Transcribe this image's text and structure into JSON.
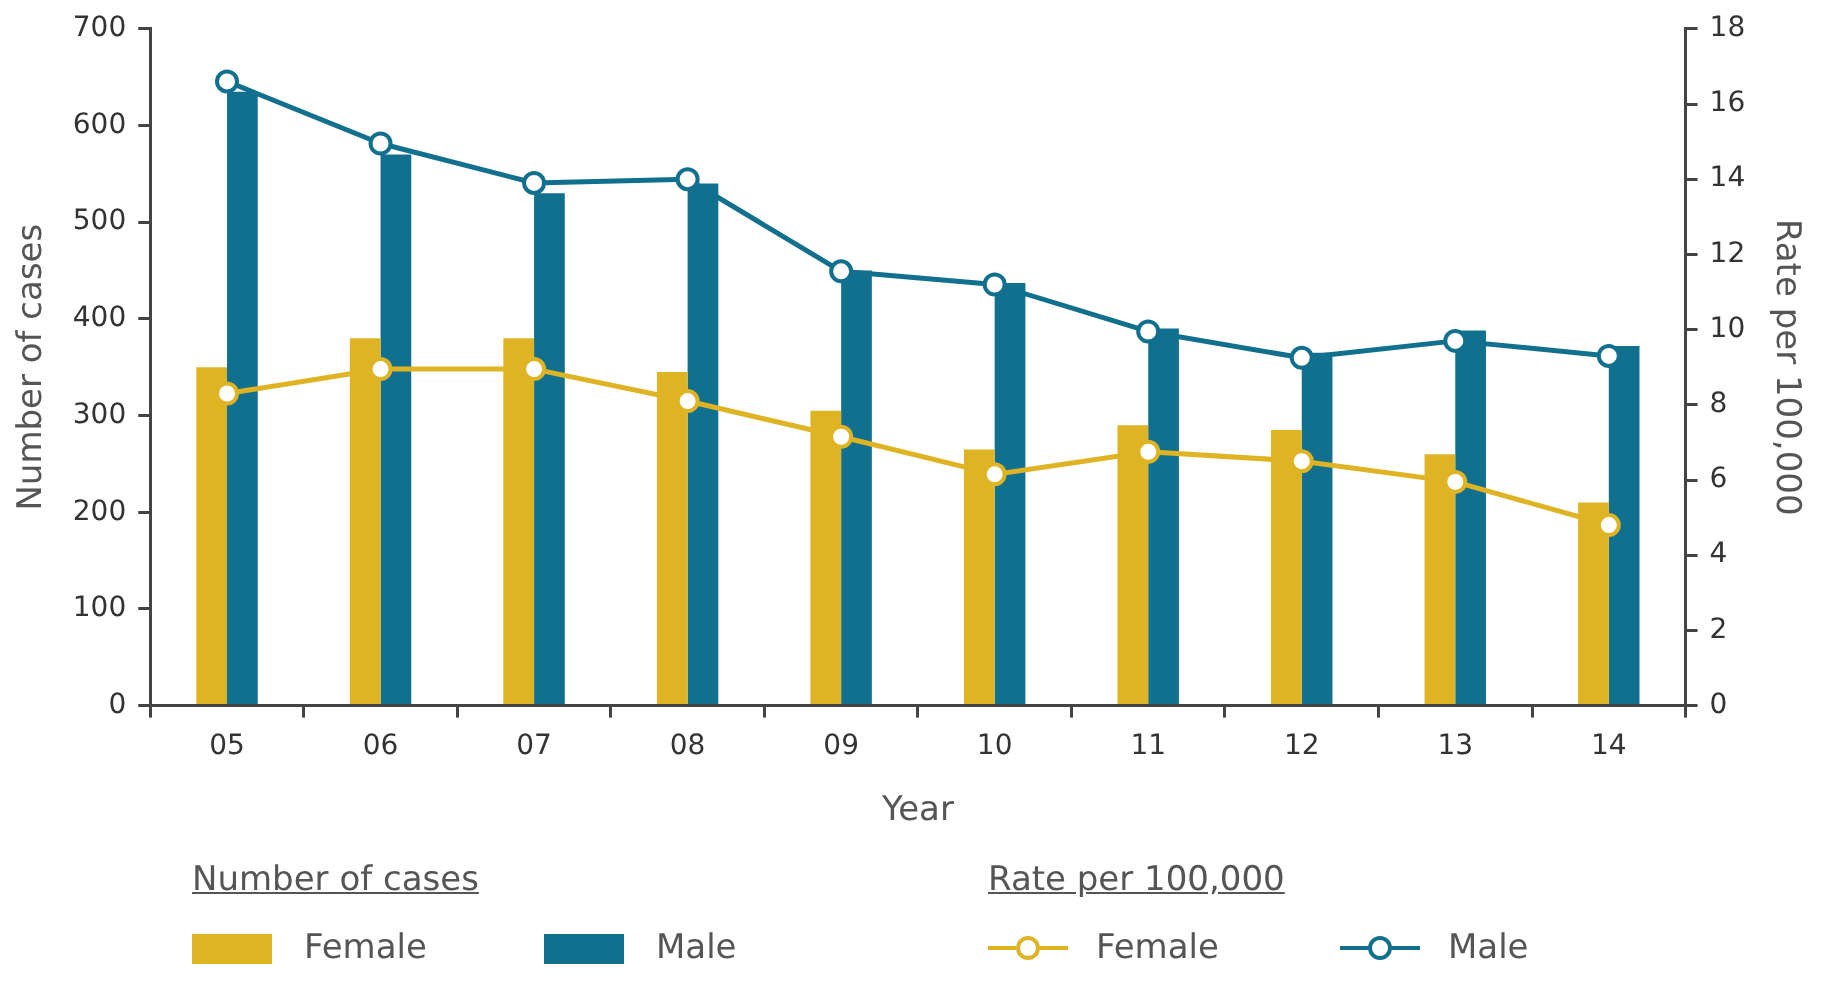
{
  "chart_data": {
    "type": "bar",
    "xlabel": "Year",
    "ylabel": "Number of cases",
    "y2label": "Rate per 100,000",
    "categories": [
      "05",
      "06",
      "07",
      "08",
      "09",
      "10",
      "11",
      "12",
      "13",
      "14"
    ],
    "series": [
      {
        "name": "Female",
        "color": "#dfb424",
        "values": [
          350,
          380,
          380,
          345,
          305,
          265,
          290,
          285,
          260,
          210
        ]
      },
      {
        "name": "Male",
        "color": "#12708f",
        "values": [
          635,
          570,
          530,
          540,
          450,
          437,
          390,
          365,
          388,
          372
        ]
      },
      {
        "name": "Female",
        "type": "line",
        "axis": "y2",
        "color": "#dfb424",
        "values": [
          8.3,
          8.95,
          8.95,
          8.1,
          7.15,
          6.15,
          6.75,
          6.5,
          5.95,
          4.8
        ]
      },
      {
        "name": "Male",
        "type": "line",
        "axis": "y2",
        "color": "#12708f",
        "values": [
          16.6,
          14.95,
          13.9,
          14.0,
          11.55,
          11.2,
          9.95,
          9.25,
          9.7,
          9.3
        ]
      }
    ],
    "ylim": [
      0,
      700
    ],
    "yticks": [
      0,
      100,
      200,
      300,
      400,
      500,
      600,
      700
    ],
    "y2lim": [
      0,
      18
    ],
    "y2ticks": [
      0,
      2,
      4,
      6,
      8,
      10,
      12,
      14,
      16,
      18
    ],
    "grid": false,
    "legend": "bottom",
    "marker": "circle",
    "line_style": "solid"
  }
}
